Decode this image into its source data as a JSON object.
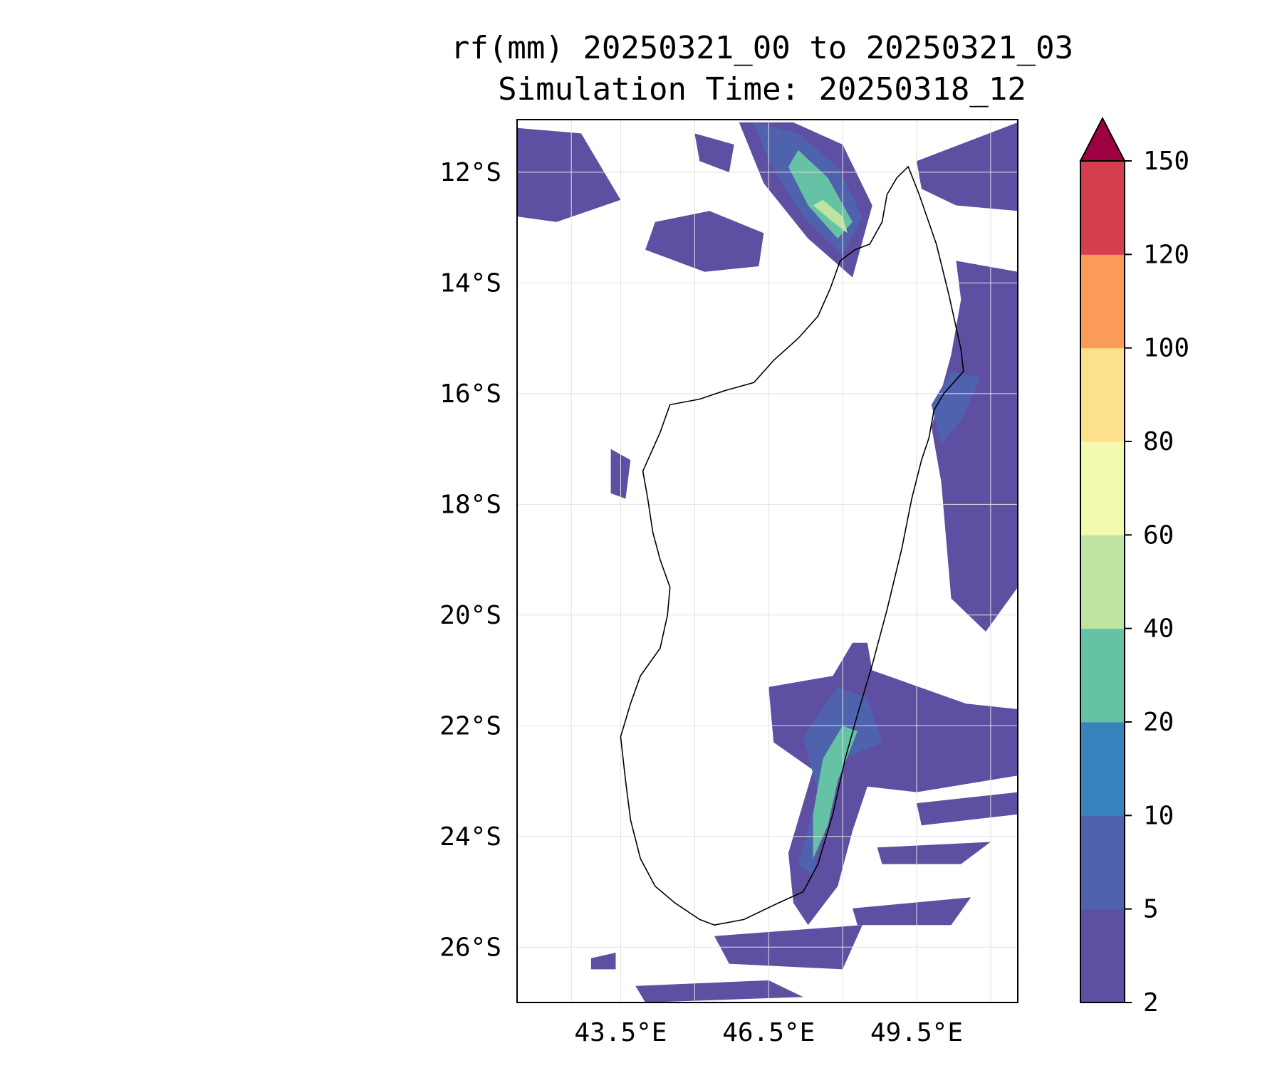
{
  "title_line1": "rf(mm) 20250321_00 to 20250321_03",
  "title_line2": "Simulation Time: 20250318_12",
  "chart_data": {
    "type": "heatmap",
    "variable": "rf(mm)",
    "period": "20250321_00 to 20250321_03",
    "simulation_time": "20250318_12",
    "xlim": [
      41.4,
      51.55
    ],
    "ylim": [
      -27.0,
      -11.05
    ],
    "x_ticks": [
      {
        "value": 43.5,
        "label": "43.5°E"
      },
      {
        "value": 46.5,
        "label": "46.5°E"
      },
      {
        "value": 49.5,
        "label": "49.5°E"
      }
    ],
    "y_ticks": [
      {
        "value": -12,
        "label": "12°S"
      },
      {
        "value": -14,
        "label": "14°S"
      },
      {
        "value": -16,
        "label": "16°S"
      },
      {
        "value": -18,
        "label": "18°S"
      },
      {
        "value": -20,
        "label": "20°S"
      },
      {
        "value": -22,
        "label": "22°S"
      },
      {
        "value": -24,
        "label": "24°S"
      },
      {
        "value": -26,
        "label": "26°S"
      }
    ],
    "grid": true,
    "colorbar": {
      "levels": [
        "2",
        "5",
        "10",
        "20",
        "40",
        "60",
        "80",
        "100",
        "120",
        "150"
      ],
      "colors": [
        "#5e4fa2",
        "#4f62ad",
        "#3883bd",
        "#66c2a5",
        "#bde4a0",
        "#f3f9ad",
        "#fde08b",
        "#fa9b58",
        "#d53e4f"
      ],
      "extend_color": "#9e0142",
      "extend": "max"
    }
  },
  "map": {
    "coast_color": "#000000",
    "land_outline": [
      [
        49.33,
        -11.9
      ],
      [
        49.55,
        -12.4
      ],
      [
        49.9,
        -13.3
      ],
      [
        50.15,
        -14.2
      ],
      [
        50.4,
        -15.2
      ],
      [
        50.45,
        -15.6
      ],
      [
        50.05,
        -16.0
      ],
      [
        49.85,
        -16.3
      ],
      [
        49.75,
        -16.8
      ],
      [
        49.6,
        -17.2
      ],
      [
        49.4,
        -17.9
      ],
      [
        49.2,
        -18.8
      ],
      [
        48.9,
        -19.9
      ],
      [
        48.6,
        -20.9
      ],
      [
        48.3,
        -21.8
      ],
      [
        48.05,
        -22.6
      ],
      [
        47.8,
        -23.6
      ],
      [
        47.5,
        -24.5
      ],
      [
        47.2,
        -25.0
      ],
      [
        46.7,
        -25.2
      ],
      [
        46.0,
        -25.5
      ],
      [
        45.4,
        -25.6
      ],
      [
        45.1,
        -25.5
      ],
      [
        44.6,
        -25.2
      ],
      [
        44.2,
        -24.9
      ],
      [
        43.9,
        -24.4
      ],
      [
        43.7,
        -23.7
      ],
      [
        43.6,
        -23.0
      ],
      [
        43.5,
        -22.2
      ],
      [
        43.7,
        -21.6
      ],
      [
        43.9,
        -21.1
      ],
      [
        44.3,
        -20.6
      ],
      [
        44.45,
        -20.0
      ],
      [
        44.5,
        -19.5
      ],
      [
        44.3,
        -19.0
      ],
      [
        44.15,
        -18.5
      ],
      [
        44.05,
        -17.9
      ],
      [
        43.95,
        -17.4
      ],
      [
        44.3,
        -16.7
      ],
      [
        44.5,
        -16.2
      ],
      [
        45.1,
        -16.1
      ],
      [
        45.6,
        -15.95
      ],
      [
        46.2,
        -15.8
      ],
      [
        46.6,
        -15.4
      ],
      [
        47.1,
        -15.0
      ],
      [
        47.5,
        -14.6
      ],
      [
        47.75,
        -14.1
      ],
      [
        47.95,
        -13.6
      ],
      [
        48.25,
        -13.4
      ],
      [
        48.55,
        -13.3
      ],
      [
        48.8,
        -12.9
      ],
      [
        48.9,
        -12.4
      ],
      [
        49.1,
        -12.1
      ],
      [
        49.33,
        -11.9
      ]
    ],
    "rain_bands": [
      {
        "level": 0,
        "points": [
          [
            47.0,
            -11.1
          ],
          [
            48.0,
            -11.5
          ],
          [
            48.6,
            -12.6
          ],
          [
            48.2,
            -13.9
          ],
          [
            47.3,
            -13.2
          ],
          [
            46.4,
            -12.2
          ],
          [
            45.9,
            -11.1
          ]
        ]
      },
      {
        "level": 1,
        "points": [
          [
            47.1,
            -11.3
          ],
          [
            47.9,
            -11.9
          ],
          [
            48.4,
            -12.8
          ],
          [
            48.0,
            -13.5
          ],
          [
            47.2,
            -12.8
          ],
          [
            46.5,
            -11.8
          ],
          [
            46.2,
            -11.1
          ]
        ]
      },
      {
        "level": 3,
        "points": [
          [
            47.1,
            -11.6
          ],
          [
            47.7,
            -12.1
          ],
          [
            48.2,
            -12.9
          ],
          [
            47.9,
            -13.2
          ],
          [
            47.3,
            -12.6
          ],
          [
            46.9,
            -11.9
          ]
        ]
      },
      {
        "level": 4,
        "points": [
          [
            47.6,
            -12.5
          ],
          [
            48.0,
            -12.8
          ],
          [
            48.1,
            -13.1
          ],
          [
            47.8,
            -12.9
          ],
          [
            47.4,
            -12.6
          ]
        ]
      },
      {
        "level": 0,
        "points": [
          [
            41.4,
            -11.2
          ],
          [
            42.7,
            -11.3
          ],
          [
            43.5,
            -12.5
          ],
          [
            42.2,
            -12.9
          ],
          [
            41.4,
            -12.8
          ]
        ]
      },
      {
        "level": 0,
        "points": [
          [
            44.2,
            -12.9
          ],
          [
            45.3,
            -12.7
          ],
          [
            46.4,
            -13.1
          ],
          [
            46.3,
            -13.7
          ],
          [
            45.2,
            -13.8
          ],
          [
            44.0,
            -13.4
          ]
        ]
      },
      {
        "level": 0,
        "points": [
          [
            45.0,
            -11.3
          ],
          [
            45.8,
            -11.5
          ],
          [
            45.7,
            -12.0
          ],
          [
            45.1,
            -11.8
          ]
        ]
      },
      {
        "level": 0,
        "points": [
          [
            50.3,
            -13.6
          ],
          [
            51.55,
            -13.8
          ],
          [
            51.55,
            -19.5
          ],
          [
            50.9,
            -20.3
          ],
          [
            50.2,
            -19.7
          ],
          [
            50.0,
            -17.6
          ],
          [
            49.8,
            -16.6
          ],
          [
            50.2,
            -15.3
          ],
          [
            50.4,
            -14.3
          ]
        ]
      },
      {
        "level": 1,
        "points": [
          [
            50.2,
            -15.6
          ],
          [
            50.8,
            -15.7
          ],
          [
            50.4,
            -16.5
          ],
          [
            50.0,
            -16.9
          ],
          [
            49.8,
            -16.2
          ]
        ]
      },
      {
        "level": 0,
        "points": [
          [
            49.5,
            -11.8
          ],
          [
            51.55,
            -11.1
          ],
          [
            51.55,
            -12.7
          ],
          [
            50.3,
            -12.6
          ],
          [
            49.6,
            -12.3
          ]
        ]
      },
      {
        "level": 0,
        "points": [
          [
            43.3,
            -17.0
          ],
          [
            43.7,
            -17.2
          ],
          [
            43.6,
            -17.9
          ],
          [
            43.3,
            -17.8
          ]
        ]
      },
      {
        "level": 0,
        "points": [
          [
            46.5,
            -21.3
          ],
          [
            47.8,
            -21.1
          ],
          [
            48.2,
            -20.5
          ],
          [
            48.5,
            -20.5
          ],
          [
            48.6,
            -21.0
          ],
          [
            50.5,
            -21.6
          ],
          [
            51.55,
            -21.7
          ],
          [
            51.55,
            -22.9
          ],
          [
            49.5,
            -23.2
          ],
          [
            48.5,
            -23.1
          ],
          [
            48.2,
            -23.9
          ],
          [
            47.9,
            -24.9
          ],
          [
            47.3,
            -25.6
          ],
          [
            47.0,
            -25.2
          ],
          [
            46.9,
            -24.3
          ],
          [
            47.2,
            -23.4
          ],
          [
            47.4,
            -22.8
          ],
          [
            46.6,
            -22.3
          ]
        ]
      },
      {
        "level": 1,
        "points": [
          [
            47.2,
            -22.2
          ],
          [
            47.9,
            -21.3
          ],
          [
            48.5,
            -21.5
          ],
          [
            48.8,
            -22.3
          ],
          [
            48.0,
            -22.6
          ],
          [
            47.7,
            -23.6
          ],
          [
            47.4,
            -24.7
          ],
          [
            47.1,
            -24.5
          ],
          [
            47.5,
            -23.2
          ]
        ]
      },
      {
        "level": 3,
        "points": [
          [
            47.6,
            -22.6
          ],
          [
            48.0,
            -22.0
          ],
          [
            48.3,
            -22.1
          ],
          [
            47.9,
            -23.0
          ],
          [
            47.7,
            -23.8
          ],
          [
            47.4,
            -24.4
          ],
          [
            47.4,
            -23.6
          ]
        ]
      },
      {
        "level": 0,
        "points": [
          [
            49.5,
            -23.4
          ],
          [
            51.55,
            -23.2
          ],
          [
            51.55,
            -23.6
          ],
          [
            49.6,
            -23.8
          ]
        ]
      },
      {
        "level": 0,
        "points": [
          [
            48.7,
            -24.2
          ],
          [
            51.0,
            -24.1
          ],
          [
            50.4,
            -24.5
          ],
          [
            48.8,
            -24.5
          ]
        ]
      },
      {
        "level": 0,
        "points": [
          [
            48.2,
            -25.3
          ],
          [
            50.6,
            -25.1
          ],
          [
            50.2,
            -25.6
          ],
          [
            48.3,
            -25.6
          ]
        ]
      },
      {
        "level": 0,
        "points": [
          [
            45.4,
            -25.8
          ],
          [
            48.4,
            -25.6
          ],
          [
            48.0,
            -26.4
          ],
          [
            45.7,
            -26.3
          ]
        ]
      },
      {
        "level": 0,
        "points": [
          [
            43.8,
            -26.7
          ],
          [
            46.5,
            -26.6
          ],
          [
            47.2,
            -26.9
          ],
          [
            44.0,
            -27.0
          ]
        ]
      },
      {
        "level": 0,
        "points": [
          [
            42.9,
            -26.2
          ],
          [
            43.4,
            -26.1
          ],
          [
            43.4,
            -26.4
          ],
          [
            42.9,
            -26.4
          ]
        ]
      }
    ]
  }
}
